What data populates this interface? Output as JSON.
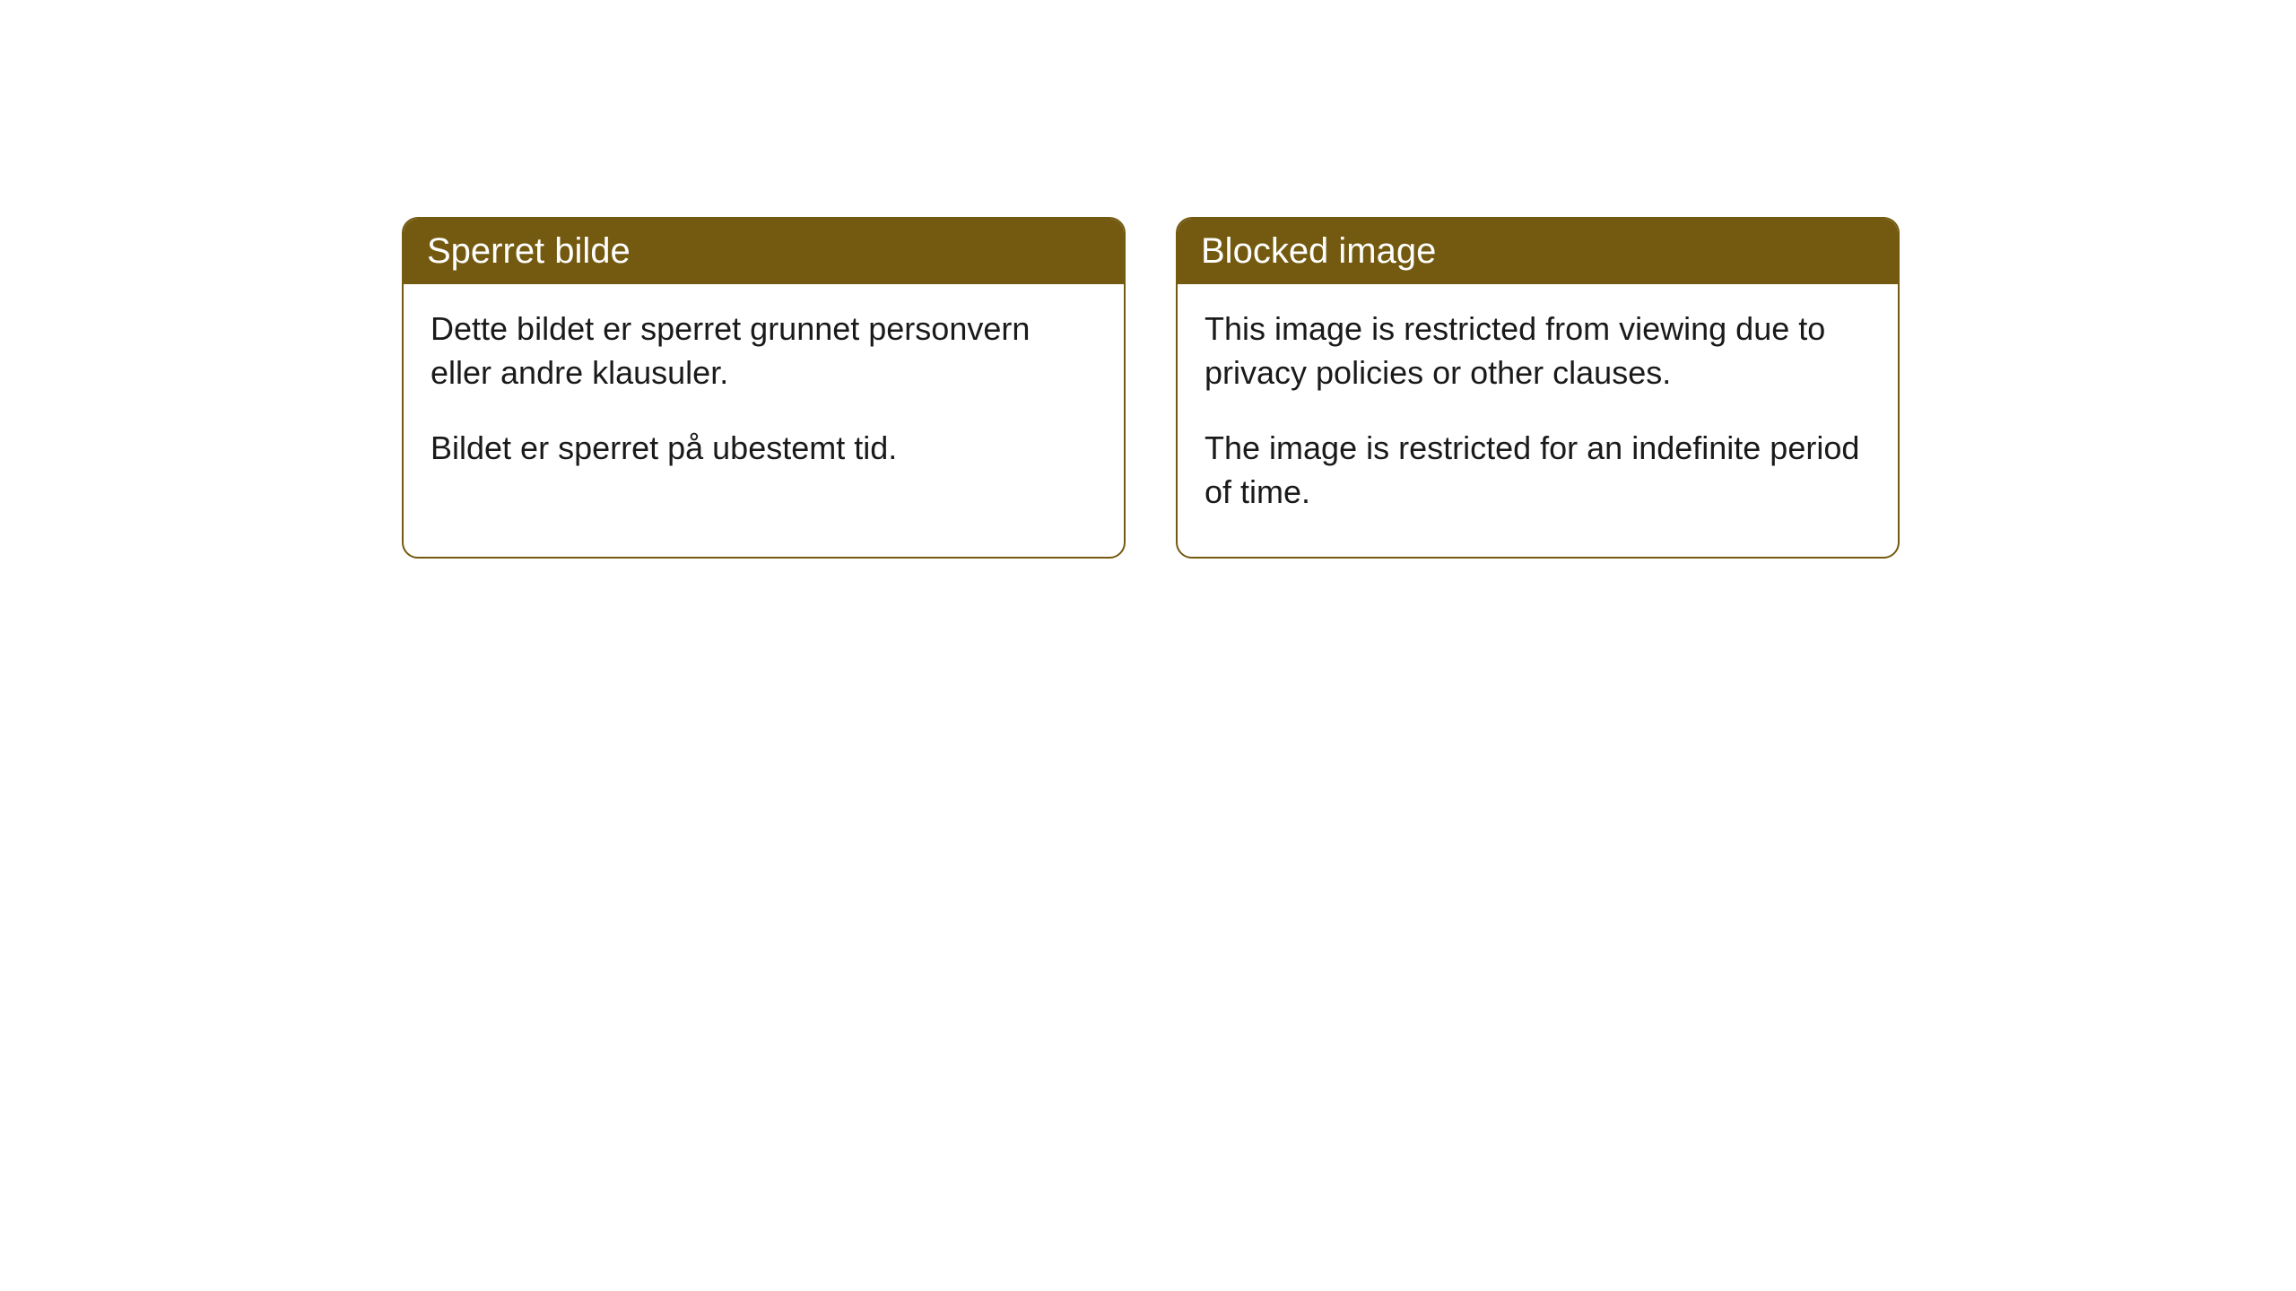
{
  "cards": [
    {
      "title": "Sperret bilde",
      "paragraph1": "Dette bildet er sperret grunnet personvern eller andre klausuler.",
      "paragraph2": "Bildet er sperret på ubestemt tid."
    },
    {
      "title": "Blocked image",
      "paragraph1": "This image is restricted from viewing due to privacy policies or other clauses.",
      "paragraph2": "The image is restricted for an indefinite period of time."
    }
  ],
  "styling": {
    "header_bg_color": "#735a10",
    "header_text_color": "#ffffff",
    "border_color": "#735a10",
    "body_text_color": "#1a1a1a",
    "card_bg_color": "#ffffff",
    "page_bg_color": "#ffffff",
    "border_radius": 18,
    "header_fontsize": 40,
    "body_fontsize": 36
  }
}
